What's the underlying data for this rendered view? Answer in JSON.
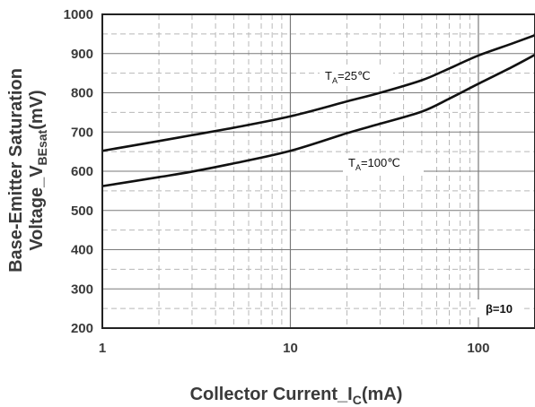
{
  "chart_data": {
    "type": "line",
    "title": "",
    "xlabel": {
      "main": "Collector Current_I",
      "sub": "C",
      "unit": "(mA)"
    },
    "ylabel": {
      "line1": "Base-Emitter Saturation",
      "line2_main": "Voltage_V",
      "line2_sub": "BEsat",
      "line2_unit": "(mV)"
    },
    "x_scale": "log",
    "xlim": [
      1,
      200
    ],
    "ylim": [
      200,
      1000
    ],
    "x_ticks": [
      {
        "value": 1,
        "label": "1"
      },
      {
        "value": 10,
        "label": "10"
      },
      {
        "value": 100,
        "label": "100"
      }
    ],
    "y_ticks": [
      {
        "value": 200,
        "label": "200"
      },
      {
        "value": 300,
        "label": "300"
      },
      {
        "value": 400,
        "label": "400"
      },
      {
        "value": 500,
        "label": "500"
      },
      {
        "value": 600,
        "label": "600"
      },
      {
        "value": 700,
        "label": "700"
      },
      {
        "value": 800,
        "label": "800"
      },
      {
        "value": 900,
        "label": "900"
      },
      {
        "value": 1000,
        "label": "1000"
      }
    ],
    "grid": true,
    "series": [
      {
        "label_main": "T",
        "label_sub": "A",
        "label_rest": "=25℃",
        "x": [
          1,
          2,
          3,
          5,
          10,
          20,
          30,
          50,
          70,
          100,
          150,
          200
        ],
        "y": [
          652,
          677,
          692,
          711,
          740,
          778,
          800,
          832,
          862,
          895,
          925,
          947
        ]
      },
      {
        "label_main": "T",
        "label_sub": "A",
        "label_rest": "=100℃",
        "x": [
          1,
          2,
          3,
          5,
          10,
          20,
          30,
          50,
          70,
          100,
          150,
          200
        ],
        "y": [
          562,
          585,
          599,
          620,
          652,
          697,
          721,
          752,
          785,
          823,
          865,
          897
        ]
      }
    ],
    "annotations": [
      {
        "text": "β=10"
      }
    ],
    "colors": {
      "line": "#111111",
      "axis": "#222222",
      "grid_major": "#7a7a7a",
      "grid_minor": "#b8b8b8",
      "text": "#3a3a3a"
    }
  }
}
